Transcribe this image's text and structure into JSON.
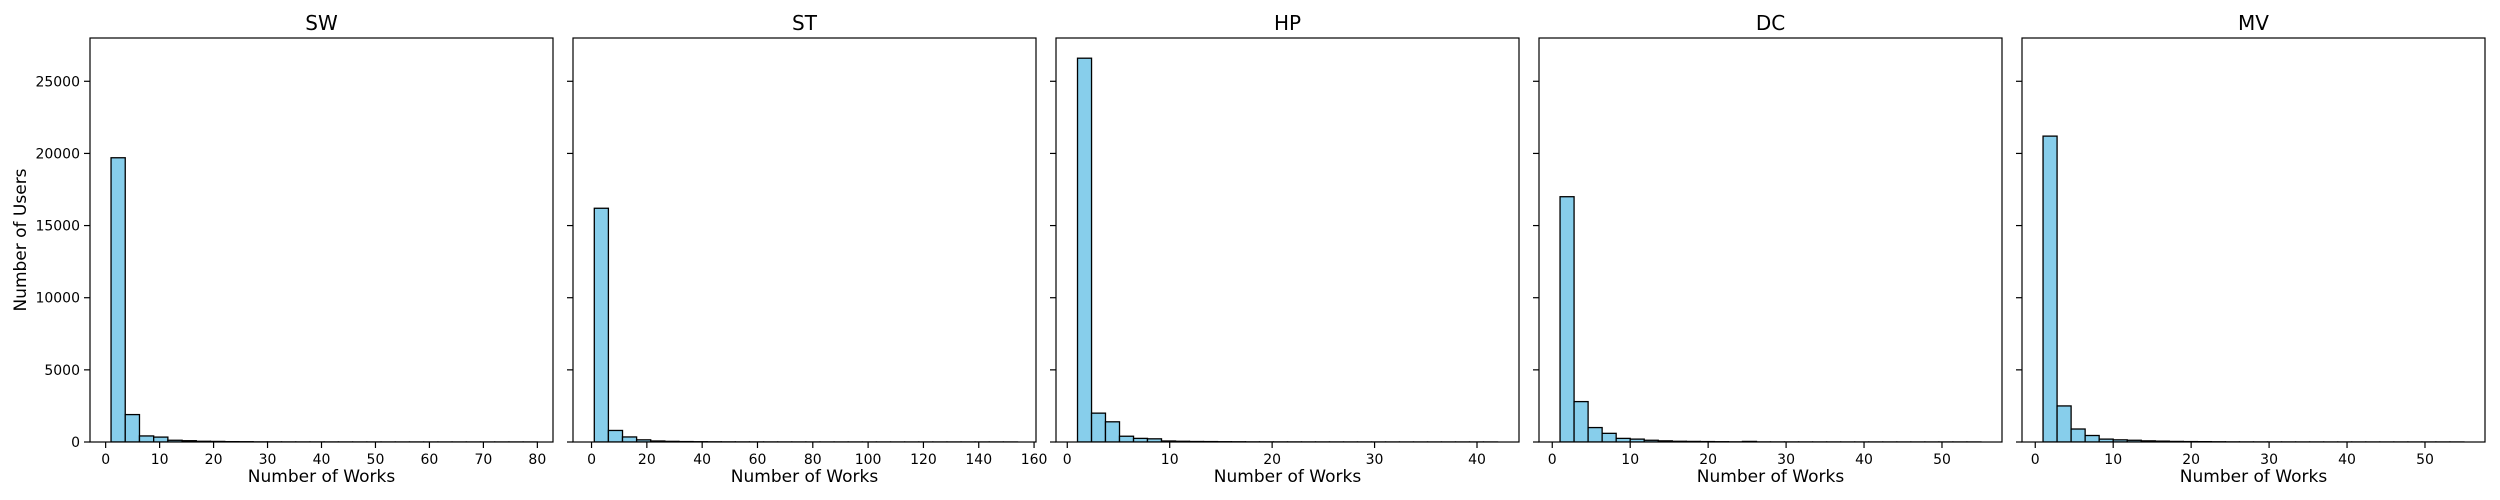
{
  "chart_data": [
    {
      "type": "bar",
      "title": "SW",
      "xlabel": "Number of Works",
      "ylabel": "Number of Users",
      "xlim": [
        -2.9,
        82.9
      ],
      "ylim": [
        0,
        28000
      ],
      "xticks": [
        0,
        10,
        20,
        30,
        40,
        50,
        60,
        70,
        80
      ],
      "yticks": [
        0,
        5000,
        10000,
        15000,
        20000,
        25000
      ],
      "grid": false,
      "bar_color": "#87ceeb",
      "edge_color": "#000000",
      "bins": [
        {
          "x0": 1.0,
          "x1": 3.63,
          "value": 19700
        },
        {
          "x0": 3.63,
          "x1": 6.27,
          "value": 1900
        },
        {
          "x0": 6.27,
          "x1": 8.9,
          "value": 420
        },
        {
          "x0": 8.9,
          "x1": 11.53,
          "value": 340
        },
        {
          "x0": 11.53,
          "x1": 14.17,
          "value": 120
        },
        {
          "x0": 14.17,
          "x1": 16.8,
          "value": 90
        },
        {
          "x0": 16.8,
          "x1": 19.43,
          "value": 50
        },
        {
          "x0": 19.43,
          "x1": 22.07,
          "value": 40
        },
        {
          "x0": 22.07,
          "x1": 24.7,
          "value": 25
        },
        {
          "x0": 24.7,
          "x1": 27.33,
          "value": 20
        },
        {
          "x0": 27.33,
          "x1": 29.97,
          "value": 8
        },
        {
          "x0": 29.97,
          "x1": 32.6,
          "value": 6
        },
        {
          "x0": 32.6,
          "x1": 35.23,
          "value": 4
        },
        {
          "x0": 35.23,
          "x1": 37.87,
          "value": 3
        },
        {
          "x0": 37.87,
          "x1": 40.5,
          "value": 3
        },
        {
          "x0": 40.5,
          "x1": 43.13,
          "value": 2
        },
        {
          "x0": 43.13,
          "x1": 45.77,
          "value": 2
        },
        {
          "x0": 45.77,
          "x1": 48.4,
          "value": 1
        },
        {
          "x0": 48.4,
          "x1": 51.03,
          "value": 1
        },
        {
          "x0": 51.03,
          "x1": 53.67,
          "value": 1
        },
        {
          "x0": 53.67,
          "x1": 56.3,
          "value": 1
        },
        {
          "x0": 56.3,
          "x1": 58.93,
          "value": 1
        },
        {
          "x0": 58.93,
          "x1": 61.57,
          "value": 1
        },
        {
          "x0": 61.57,
          "x1": 64.2,
          "value": 1
        },
        {
          "x0": 64.2,
          "x1": 66.83,
          "value": 1
        },
        {
          "x0": 66.83,
          "x1": 69.47,
          "value": 1
        },
        {
          "x0": 69.47,
          "x1": 72.1,
          "value": 1
        },
        {
          "x0": 72.1,
          "x1": 74.73,
          "value": 1
        },
        {
          "x0": 74.73,
          "x1": 77.37,
          "value": 1
        },
        {
          "x0": 77.37,
          "x1": 80.0,
          "value": 1
        }
      ]
    },
    {
      "type": "bar",
      "title": "ST",
      "xlabel": "Number of Works",
      "ylabel": "",
      "xlim": [
        -6.7,
        160.7
      ],
      "ylim": [
        0,
        28000
      ],
      "xticks": [
        0,
        20,
        40,
        60,
        80,
        100,
        120,
        140,
        160
      ],
      "yticks": [
        0,
        5000,
        10000,
        15000,
        20000,
        25000
      ],
      "grid": false,
      "bar_color": "#87ceeb",
      "edge_color": "#000000",
      "bins": [
        {
          "x0": 1.0,
          "x1": 6.1,
          "value": 16200
        },
        {
          "x0": 6.1,
          "x1": 11.2,
          "value": 800
        },
        {
          "x0": 11.2,
          "x1": 16.3,
          "value": 350
        },
        {
          "x0": 16.3,
          "x1": 21.4,
          "value": 150
        },
        {
          "x0": 21.4,
          "x1": 26.5,
          "value": 70
        },
        {
          "x0": 26.5,
          "x1": 31.6,
          "value": 45
        },
        {
          "x0": 31.6,
          "x1": 36.7,
          "value": 30
        },
        {
          "x0": 36.7,
          "x1": 41.8,
          "value": 20
        },
        {
          "x0": 41.8,
          "x1": 46.9,
          "value": 12
        },
        {
          "x0": 46.9,
          "x1": 52.0,
          "value": 8
        },
        {
          "x0": 52.0,
          "x1": 57.1,
          "value": 5
        },
        {
          "x0": 57.1,
          "x1": 62.2,
          "value": 4
        },
        {
          "x0": 62.2,
          "x1": 67.3,
          "value": 3
        },
        {
          "x0": 67.3,
          "x1": 72.4,
          "value": 2
        },
        {
          "x0": 72.4,
          "x1": 77.5,
          "value": 2
        },
        {
          "x0": 77.5,
          "x1": 82.6,
          "value": 1
        },
        {
          "x0": 82.6,
          "x1": 87.7,
          "value": 1
        },
        {
          "x0": 87.7,
          "x1": 92.8,
          "value": 1
        },
        {
          "x0": 92.8,
          "x1": 97.9,
          "value": 1
        },
        {
          "x0": 97.9,
          "x1": 103.0,
          "value": 1
        },
        {
          "x0": 103.0,
          "x1": 108.1,
          "value": 1
        },
        {
          "x0": 108.1,
          "x1": 113.2,
          "value": 1
        },
        {
          "x0": 113.2,
          "x1": 118.3,
          "value": 1
        },
        {
          "x0": 118.3,
          "x1": 123.4,
          "value": 1
        },
        {
          "x0": 123.4,
          "x1": 128.5,
          "value": 1
        },
        {
          "x0": 128.5,
          "x1": 133.6,
          "value": 1
        },
        {
          "x0": 133.6,
          "x1": 138.7,
          "value": 1
        },
        {
          "x0": 138.7,
          "x1": 143.8,
          "value": 1
        },
        {
          "x0": 143.8,
          "x1": 148.9,
          "value": 1
        },
        {
          "x0": 148.9,
          "x1": 154.0,
          "value": 1
        }
      ]
    },
    {
      "type": "bar",
      "title": "HP",
      "xlabel": "Number of Works",
      "ylabel": "",
      "xlim": [
        -1.1,
        44.1
      ],
      "ylim": [
        0,
        28000
      ],
      "xticks": [
        0,
        10,
        20,
        30,
        40
      ],
      "yticks": [
        0,
        5000,
        10000,
        15000,
        20000,
        25000
      ],
      "grid": false,
      "bar_color": "#87ceeb",
      "edge_color": "#000000",
      "bins": [
        {
          "x0": 1.0,
          "x1": 2.37,
          "value": 26600
        },
        {
          "x0": 2.37,
          "x1": 3.73,
          "value": 2000
        },
        {
          "x0": 3.73,
          "x1": 5.1,
          "value": 1400
        },
        {
          "x0": 5.1,
          "x1": 6.47,
          "value": 400
        },
        {
          "x0": 6.47,
          "x1": 7.83,
          "value": 250
        },
        {
          "x0": 7.83,
          "x1": 9.2,
          "value": 220
        },
        {
          "x0": 9.2,
          "x1": 10.57,
          "value": 70
        },
        {
          "x0": 10.57,
          "x1": 11.93,
          "value": 50
        },
        {
          "x0": 11.93,
          "x1": 13.3,
          "value": 35
        },
        {
          "x0": 13.3,
          "x1": 14.67,
          "value": 30
        },
        {
          "x0": 14.67,
          "x1": 16.03,
          "value": 20
        },
        {
          "x0": 16.03,
          "x1": 17.4,
          "value": 15
        },
        {
          "x0": 17.4,
          "x1": 18.77,
          "value": 8
        },
        {
          "x0": 18.77,
          "x1": 20.13,
          "value": 6
        },
        {
          "x0": 20.13,
          "x1": 21.5,
          "value": 5
        },
        {
          "x0": 21.5,
          "x1": 22.87,
          "value": 4
        },
        {
          "x0": 22.87,
          "x1": 24.23,
          "value": 3
        },
        {
          "x0": 24.23,
          "x1": 25.6,
          "value": 3
        },
        {
          "x0": 25.6,
          "x1": 26.97,
          "value": 2
        },
        {
          "x0": 26.97,
          "x1": 28.33,
          "value": 2
        },
        {
          "x0": 28.33,
          "x1": 29.7,
          "value": 1
        },
        {
          "x0": 29.7,
          "x1": 31.07,
          "value": 1
        },
        {
          "x0": 31.07,
          "x1": 32.43,
          "value": 1
        },
        {
          "x0": 32.43,
          "x1": 33.8,
          "value": 1
        },
        {
          "x0": 33.8,
          "x1": 35.17,
          "value": 1
        },
        {
          "x0": 35.17,
          "x1": 36.53,
          "value": 1
        },
        {
          "x0": 36.53,
          "x1": 37.9,
          "value": 1
        },
        {
          "x0": 37.9,
          "x1": 39.27,
          "value": 1
        },
        {
          "x0": 39.27,
          "x1": 40.63,
          "value": 1
        },
        {
          "x0": 40.63,
          "x1": 42.0,
          "value": 1
        }
      ]
    },
    {
      "type": "bar",
      "title": "DC",
      "xlabel": "Number of Works",
      "ylabel": "",
      "xlim": [
        -1.7,
        57.7
      ],
      "ylim": [
        0,
        28000
      ],
      "xticks": [
        0,
        10,
        20,
        30,
        40,
        50
      ],
      "yticks": [
        0,
        5000,
        10000,
        15000,
        20000,
        25000
      ],
      "grid": false,
      "bar_color": "#87ceeb",
      "edge_color": "#000000",
      "bins": [
        {
          "x0": 1.0,
          "x1": 2.8,
          "value": 17000
        },
        {
          "x0": 2.8,
          "x1": 4.6,
          "value": 2800
        },
        {
          "x0": 4.6,
          "x1": 6.4,
          "value": 1000
        },
        {
          "x0": 6.4,
          "x1": 8.2,
          "value": 600
        },
        {
          "x0": 8.2,
          "x1": 10.0,
          "value": 250
        },
        {
          "x0": 10.0,
          "x1": 11.8,
          "value": 200
        },
        {
          "x0": 11.8,
          "x1": 13.6,
          "value": 120
        },
        {
          "x0": 13.6,
          "x1": 15.4,
          "value": 80
        },
        {
          "x0": 15.4,
          "x1": 17.2,
          "value": 50
        },
        {
          "x0": 17.2,
          "x1": 19.0,
          "value": 40
        },
        {
          "x0": 19.0,
          "x1": 20.8,
          "value": 30
        },
        {
          "x0": 20.8,
          "x1": 22.6,
          "value": 20
        },
        {
          "x0": 22.6,
          "x1": 24.4,
          "value": 10
        },
        {
          "x0": 24.4,
          "x1": 26.2,
          "value": 40
        },
        {
          "x0": 26.2,
          "x1": 28.0,
          "value": 5
        },
        {
          "x0": 28.0,
          "x1": 29.8,
          "value": 4
        },
        {
          "x0": 29.8,
          "x1": 31.6,
          "value": 3
        },
        {
          "x0": 31.6,
          "x1": 33.4,
          "value": 3
        },
        {
          "x0": 33.4,
          "x1": 35.2,
          "value": 2
        },
        {
          "x0": 35.2,
          "x1": 37.0,
          "value": 2
        },
        {
          "x0": 37.0,
          "x1": 38.8,
          "value": 1
        },
        {
          "x0": 38.8,
          "x1": 40.6,
          "value": 1
        },
        {
          "x0": 40.6,
          "x1": 42.4,
          "value": 1
        },
        {
          "x0": 42.4,
          "x1": 44.2,
          "value": 1
        },
        {
          "x0": 44.2,
          "x1": 46.0,
          "value": 1
        },
        {
          "x0": 46.0,
          "x1": 47.8,
          "value": 1
        },
        {
          "x0": 47.8,
          "x1": 49.6,
          "value": 1
        },
        {
          "x0": 49.6,
          "x1": 51.4,
          "value": 1
        },
        {
          "x0": 51.4,
          "x1": 53.2,
          "value": 1
        },
        {
          "x0": 53.2,
          "x1": 55.0,
          "value": 1
        }
      ]
    },
    {
      "type": "bar",
      "title": "MV",
      "xlabel": "Number of Works",
      "ylabel": "",
      "xlim": [
        -1.7,
        57.7
      ],
      "ylim": [
        0,
        28000
      ],
      "xticks": [
        0,
        10,
        20,
        30,
        40,
        50
      ],
      "yticks": [
        0,
        5000,
        10000,
        15000,
        20000,
        25000
      ],
      "grid": false,
      "bar_color": "#87ceeb",
      "edge_color": "#000000",
      "bins": [
        {
          "x0": 1.0,
          "x1": 2.8,
          "value": 21200
        },
        {
          "x0": 2.8,
          "x1": 4.6,
          "value": 2500
        },
        {
          "x0": 4.6,
          "x1": 6.4,
          "value": 900
        },
        {
          "x0": 6.4,
          "x1": 8.2,
          "value": 450
        },
        {
          "x0": 8.2,
          "x1": 10.0,
          "value": 200
        },
        {
          "x0": 10.0,
          "x1": 11.8,
          "value": 150
        },
        {
          "x0": 11.8,
          "x1": 13.6,
          "value": 120
        },
        {
          "x0": 13.6,
          "x1": 15.4,
          "value": 80
        },
        {
          "x0": 15.4,
          "x1": 17.2,
          "value": 60
        },
        {
          "x0": 17.2,
          "x1": 19.0,
          "value": 40
        },
        {
          "x0": 19.0,
          "x1": 20.8,
          "value": 30
        },
        {
          "x0": 20.8,
          "x1": 22.6,
          "value": 25
        },
        {
          "x0": 22.6,
          "x1": 24.4,
          "value": 15
        },
        {
          "x0": 24.4,
          "x1": 26.2,
          "value": 8
        },
        {
          "x0": 26.2,
          "x1": 28.0,
          "value": 5
        },
        {
          "x0": 28.0,
          "x1": 29.8,
          "value": 4
        },
        {
          "x0": 29.8,
          "x1": 31.6,
          "value": 3
        },
        {
          "x0": 31.6,
          "x1": 33.4,
          "value": 3
        },
        {
          "x0": 33.4,
          "x1": 35.2,
          "value": 2
        },
        {
          "x0": 35.2,
          "x1": 37.0,
          "value": 2
        },
        {
          "x0": 37.0,
          "x1": 38.8,
          "value": 1
        },
        {
          "x0": 38.8,
          "x1": 40.6,
          "value": 1
        },
        {
          "x0": 40.6,
          "x1": 42.4,
          "value": 1
        },
        {
          "x0": 42.4,
          "x1": 44.2,
          "value": 1
        },
        {
          "x0": 44.2,
          "x1": 46.0,
          "value": 1
        },
        {
          "x0": 46.0,
          "x1": 47.8,
          "value": 1
        },
        {
          "x0": 47.8,
          "x1": 49.6,
          "value": 1
        },
        {
          "x0": 49.6,
          "x1": 51.4,
          "value": 1
        },
        {
          "x0": 51.4,
          "x1": 53.2,
          "value": 1
        },
        {
          "x0": 53.2,
          "x1": 55.0,
          "value": 1
        }
      ]
    }
  ]
}
